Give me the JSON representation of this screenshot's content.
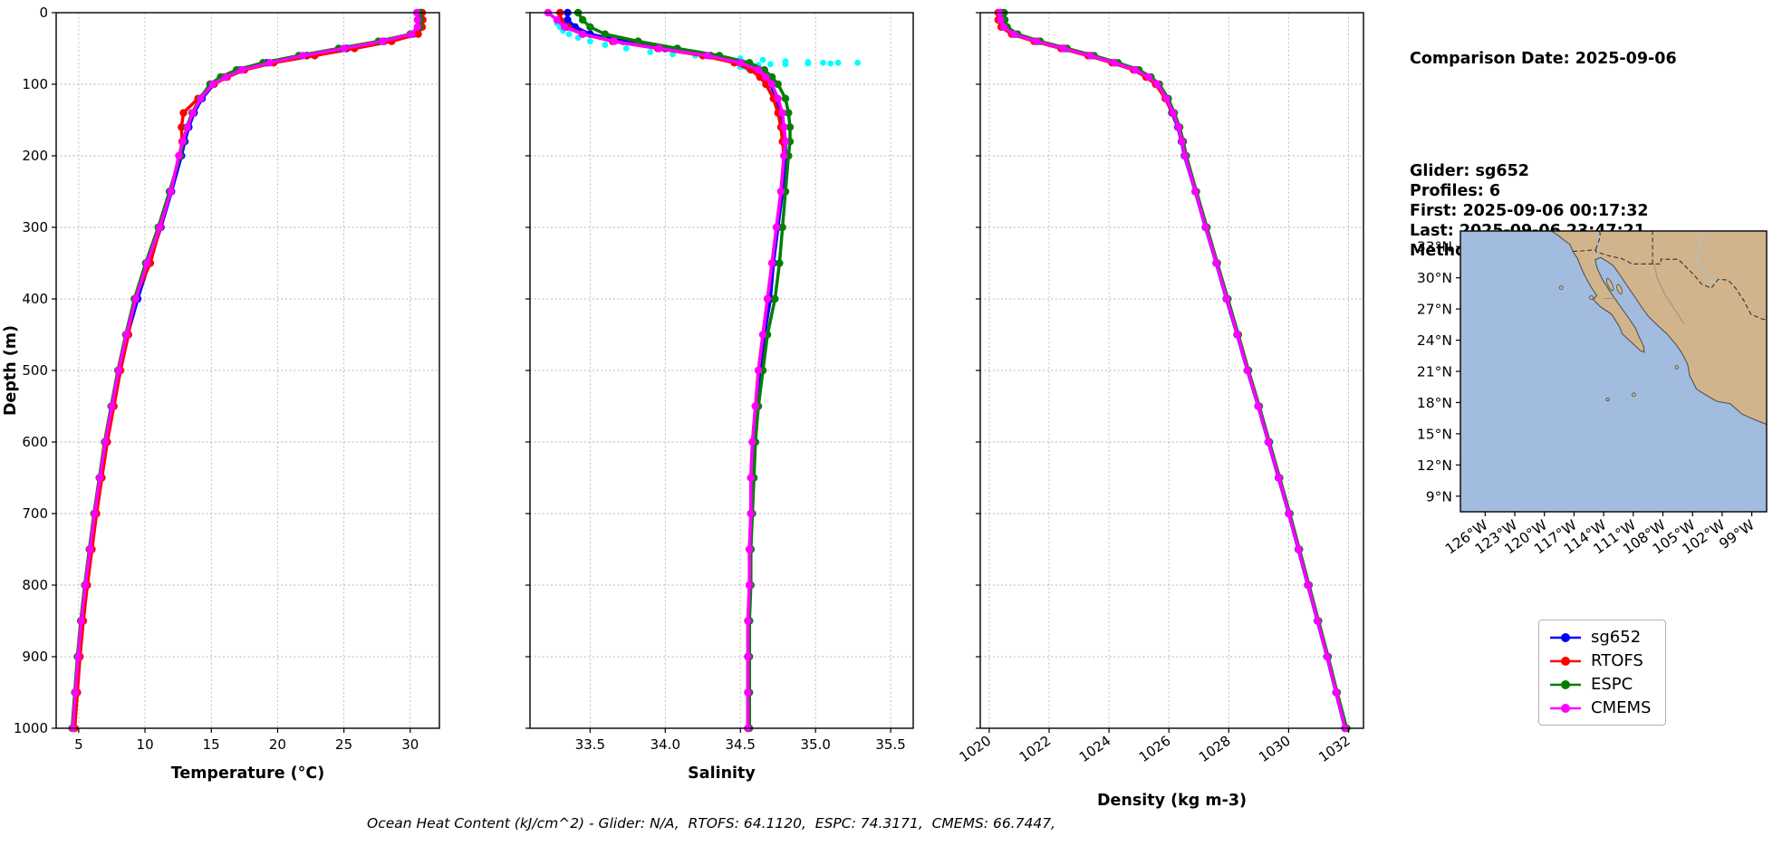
{
  "info_panel": {
    "title": "Comparison Date: 2025-09-06",
    "lines": [
      "Glider: sg652",
      "Profiles: 6",
      "First: 2025-09-06 00:17:32",
      "Last: 2025-09-06 23:47:21",
      "Method: Nearest-Neighbor"
    ]
  },
  "caption": "Ocean Heat Content (kJ/cm^2) - Glider: N/A,  RTOFS: 64.1120,  ESPC: 74.3171,  CMEMS: 66.7447,",
  "legend": {
    "items": [
      {
        "label": "sg652",
        "color": "#0000ff"
      },
      {
        "label": "RTOFS",
        "color": "#ff0000"
      },
      {
        "label": "ESPC",
        "color": "#008000"
      },
      {
        "label": "CMEMS",
        "color": "#ff00ff"
      }
    ]
  },
  "colors": {
    "glider": "#0000ff",
    "rtofs": "#ff0000",
    "espc": "#008000",
    "cmems": "#ff00ff",
    "raw_scatter": "#00ffff",
    "ocean": "#a2bcdf",
    "land": "#d2b48c"
  },
  "chart_data": [
    {
      "id": "temperature",
      "type": "line",
      "title": "",
      "xlabel": "Temperature (°C)",
      "ylabel": "Depth (m)",
      "xlim": [
        3.3,
        32.2
      ],
      "xticks": [
        5,
        10,
        15,
        20,
        25,
        30
      ],
      "xtick_labels": [
        "5",
        "10",
        "15",
        "20",
        "25",
        "30"
      ],
      "ylim": [
        0,
        1000
      ],
      "yticks": [
        0,
        100,
        200,
        300,
        400,
        500,
        600,
        700,
        800,
        900,
        1000
      ],
      "grid": true,
      "depths": [
        0,
        10,
        20,
        30,
        40,
        50,
        60,
        70,
        80,
        90,
        100,
        120,
        140,
        160,
        180,
        200,
        250,
        300,
        350,
        400,
        450,
        500,
        550,
        600,
        650,
        700,
        750,
        800,
        850,
        900,
        950,
        1000
      ],
      "series": [
        {
          "name": "sg652",
          "color": "#0000ff",
          "values": [
            30.8,
            30.85,
            30.8,
            30.2,
            28.0,
            25.2,
            22.2,
            19.2,
            17.2,
            16.0,
            15.2,
            14.3,
            13.7,
            13.3,
            13.0,
            12.75,
            12.0,
            11.2,
            10.3,
            9.45,
            8.7,
            8.1,
            7.6,
            7.1,
            6.7,
            6.3,
            5.95,
            5.6,
            5.3,
            5.05,
            4.85,
            4.65
          ]
        },
        {
          "name": "RTOFS",
          "color": "#ff0000",
          "values": [
            30.9,
            30.95,
            30.9,
            30.6,
            28.6,
            25.8,
            22.8,
            19.7,
            17.5,
            16.2,
            15.2,
            14.0,
            12.9,
            12.75,
            12.8,
            12.6,
            11.9,
            11.15,
            10.4,
            9.2,
            8.75,
            8.15,
            7.65,
            7.15,
            6.75,
            6.35,
            6.0,
            5.65,
            5.35,
            5.1,
            4.9,
            4.7
          ]
        },
        {
          "name": "ESPC",
          "color": "#008000",
          "values": [
            30.7,
            30.75,
            30.7,
            30.0,
            27.6,
            24.6,
            21.6,
            18.9,
            16.9,
            15.7,
            14.9,
            14.15,
            13.55,
            13.15,
            12.9,
            12.65,
            11.85,
            11.0,
            10.05,
            9.2,
            8.55,
            7.95,
            7.45,
            6.95,
            6.55,
            6.15,
            5.8,
            5.45,
            5.15,
            4.9,
            4.7,
            4.5
          ]
        },
        {
          "name": "CMEMS",
          "color": "#ff00ff",
          "values": [
            30.5,
            30.55,
            30.55,
            30.1,
            27.9,
            25.0,
            21.9,
            19.4,
            17.3,
            16.1,
            15.1,
            14.2,
            13.6,
            13.2,
            12.85,
            12.55,
            11.95,
            11.1,
            10.15,
            9.3,
            8.6,
            8.0,
            7.5,
            7.0,
            6.6,
            6.2,
            5.85,
            5.5,
            5.2,
            4.95,
            4.75,
            4.55
          ]
        }
      ]
    },
    {
      "id": "salinity",
      "type": "line",
      "title": "",
      "xlabel": "Salinity",
      "xlim": [
        33.1,
        35.65
      ],
      "xticks": [
        33.5,
        34.0,
        34.5,
        35.0,
        35.5
      ],
      "xtick_labels": [
        "33.5",
        "34.0",
        "34.5",
        "35.0",
        "35.5"
      ],
      "ylim": [
        0,
        1000
      ],
      "yticks": [
        0,
        100,
        200,
        300,
        400,
        500,
        600,
        700,
        800,
        900,
        1000
      ],
      "grid": true,
      "depths": [
        0,
        10,
        20,
        30,
        40,
        50,
        60,
        70,
        80,
        90,
        100,
        120,
        140,
        160,
        180,
        200,
        250,
        300,
        350,
        400,
        450,
        500,
        550,
        600,
        650,
        700,
        750,
        800,
        850,
        900,
        950,
        1000
      ],
      "scatter": {
        "name": "glider-raw",
        "color": "#00ffff",
        "depths": [
          15,
          20,
          25,
          30,
          35,
          40,
          45,
          50,
          55,
          58,
          60,
          62,
          64,
          66,
          68,
          69,
          70,
          70,
          70,
          71,
          71,
          72,
          72,
          73,
          74,
          75,
          76,
          78,
          80,
          83,
          86,
          90
        ],
        "values": [
          33.28,
          33.3,
          33.32,
          33.36,
          33.42,
          33.5,
          33.6,
          33.74,
          33.9,
          34.05,
          34.2,
          34.35,
          34.5,
          34.65,
          34.8,
          34.95,
          35.05,
          35.15,
          35.28,
          35.1,
          34.95,
          34.8,
          34.7,
          34.62,
          34.56,
          34.52,
          34.5,
          34.55,
          34.6,
          34.62,
          34.64,
          34.66
        ]
      },
      "series": [
        {
          "name": "sg652",
          "color": "#0000ff",
          "values": [
            33.35,
            33.35,
            33.4,
            33.5,
            33.72,
            34.0,
            34.3,
            34.5,
            34.6,
            34.66,
            34.7,
            34.74,
            34.77,
            34.79,
            34.8,
            34.8,
            34.78,
            34.75,
            34.72,
            34.7,
            34.66,
            34.63,
            34.61,
            34.59,
            34.58,
            34.57,
            34.57,
            34.56,
            34.56,
            34.55,
            34.55,
            34.55
          ]
        },
        {
          "name": "RTOFS",
          "color": "#ff0000",
          "values": [
            33.3,
            33.3,
            33.35,
            33.45,
            33.65,
            33.95,
            34.25,
            34.46,
            34.57,
            34.63,
            34.67,
            34.72,
            34.75,
            34.77,
            34.78,
            34.79,
            34.77,
            34.74,
            34.71,
            34.68,
            34.65,
            34.62,
            34.6,
            34.58,
            34.57,
            34.57,
            34.56,
            34.56,
            34.55,
            34.55,
            34.55,
            34.55
          ]
        },
        {
          "name": "ESPC",
          "color": "#008000",
          "values": [
            33.42,
            33.45,
            33.5,
            33.6,
            33.82,
            34.08,
            34.36,
            34.56,
            34.66,
            34.71,
            34.75,
            34.8,
            34.82,
            34.83,
            34.83,
            34.82,
            34.8,
            34.78,
            34.76,
            34.73,
            34.68,
            34.65,
            34.62,
            34.6,
            34.59,
            34.58,
            34.57,
            34.57,
            34.56,
            34.56,
            34.56,
            34.56
          ]
        },
        {
          "name": "CMEMS",
          "color": "#ff00ff",
          "values": [
            33.22,
            33.28,
            33.33,
            33.45,
            33.66,
            33.96,
            34.28,
            34.5,
            34.62,
            34.67,
            34.71,
            34.75,
            34.78,
            34.79,
            34.8,
            34.79,
            34.77,
            34.74,
            34.71,
            34.68,
            34.65,
            34.62,
            34.6,
            34.58,
            34.57,
            34.57,
            34.56,
            34.56,
            34.55,
            34.55,
            34.55,
            34.55
          ]
        }
      ]
    },
    {
      "id": "density",
      "type": "line",
      "title": "",
      "xlabel": "Density (kg m-3)",
      "xlim": [
        1019.7,
        1032.5
      ],
      "xticks": [
        1020,
        1022,
        1024,
        1026,
        1028,
        1030,
        1032
      ],
      "xtick_labels": [
        "1020",
        "1022",
        "1024",
        "1026",
        "1028",
        "1030",
        "1032"
      ],
      "rotate_xticks": true,
      "ylim": [
        0,
        1000
      ],
      "yticks": [
        0,
        100,
        200,
        300,
        400,
        500,
        600,
        700,
        800,
        900,
        1000
      ],
      "grid": true,
      "depths": [
        0,
        10,
        20,
        30,
        40,
        50,
        60,
        70,
        80,
        90,
        100,
        120,
        140,
        160,
        180,
        200,
        250,
        300,
        350,
        400,
        450,
        500,
        550,
        600,
        650,
        700,
        750,
        800,
        850,
        900,
        950,
        1000
      ],
      "series": [
        {
          "name": "sg652",
          "color": "#0000ff",
          "values": [
            1020.4,
            1020.4,
            1020.5,
            1020.85,
            1021.6,
            1022.5,
            1023.4,
            1024.2,
            1024.9,
            1025.3,
            1025.6,
            1025.9,
            1026.1,
            1026.3,
            1026.42,
            1026.52,
            1026.88,
            1027.22,
            1027.58,
            1027.92,
            1028.28,
            1028.62,
            1028.98,
            1029.32,
            1029.66,
            1030.0,
            1030.32,
            1030.64,
            1030.96,
            1031.28,
            1031.58,
            1031.88
          ]
        },
        {
          "name": "RTOFS",
          "color": "#ff0000",
          "values": [
            1020.3,
            1020.3,
            1020.4,
            1020.75,
            1021.5,
            1022.4,
            1023.3,
            1024.1,
            1024.82,
            1025.24,
            1025.56,
            1025.88,
            1026.12,
            1026.32,
            1026.44,
            1026.55,
            1026.9,
            1027.25,
            1027.6,
            1027.95,
            1028.3,
            1028.64,
            1029.0,
            1029.34,
            1029.68,
            1030.02,
            1030.34,
            1030.66,
            1030.98,
            1031.3,
            1031.6,
            1031.9
          ]
        },
        {
          "name": "ESPC",
          "color": "#008000",
          "values": [
            1020.5,
            1020.52,
            1020.6,
            1020.95,
            1021.7,
            1022.6,
            1023.5,
            1024.3,
            1025.0,
            1025.4,
            1025.68,
            1025.98,
            1026.18,
            1026.36,
            1026.48,
            1026.58,
            1026.92,
            1027.27,
            1027.62,
            1027.97,
            1028.32,
            1028.66,
            1029.02,
            1029.36,
            1029.7,
            1030.04,
            1030.36,
            1030.68,
            1031.0,
            1031.32,
            1031.62,
            1031.94
          ]
        },
        {
          "name": "CMEMS",
          "color": "#ff00ff",
          "values": [
            1020.35,
            1020.38,
            1020.48,
            1020.82,
            1021.58,
            1022.48,
            1023.38,
            1024.18,
            1024.88,
            1025.32,
            1025.62,
            1025.92,
            1026.14,
            1026.32,
            1026.44,
            1026.54,
            1026.89,
            1027.23,
            1027.59,
            1027.93,
            1028.29,
            1028.63,
            1028.99,
            1029.33,
            1029.67,
            1030.01,
            1030.33,
            1030.65,
            1030.97,
            1031.29,
            1031.59,
            1031.89
          ]
        }
      ]
    }
  ],
  "map": {
    "ocean_color": "#a2bcdf",
    "land_color": "#d2b48c",
    "lat_ticks": [
      {
        "v": 33,
        "label": "33°N"
      },
      {
        "v": 30,
        "label": "30°N"
      },
      {
        "v": 27,
        "label": "27°N"
      },
      {
        "v": 24,
        "label": "24°N"
      },
      {
        "v": 21,
        "label": "21°N"
      },
      {
        "v": 18,
        "label": "18°N"
      },
      {
        "v": 15,
        "label": "15°N"
      },
      {
        "v": 12,
        "label": "12°N"
      },
      {
        "v": 9,
        "label": "9°N"
      }
    ],
    "lon_ticks": [
      {
        "v": -126,
        "label": "126°W"
      },
      {
        "v": -123,
        "label": "123°W"
      },
      {
        "v": -120,
        "label": "120°W"
      },
      {
        "v": -117,
        "label": "117°W"
      },
      {
        "v": -114,
        "label": "114°W"
      },
      {
        "v": -111,
        "label": "111°W"
      },
      {
        "v": -108,
        "label": "108°W"
      },
      {
        "v": -105,
        "label": "105°W"
      },
      {
        "v": -102,
        "label": "102°W"
      },
      {
        "v": -99,
        "label": "99°W"
      }
    ]
  }
}
